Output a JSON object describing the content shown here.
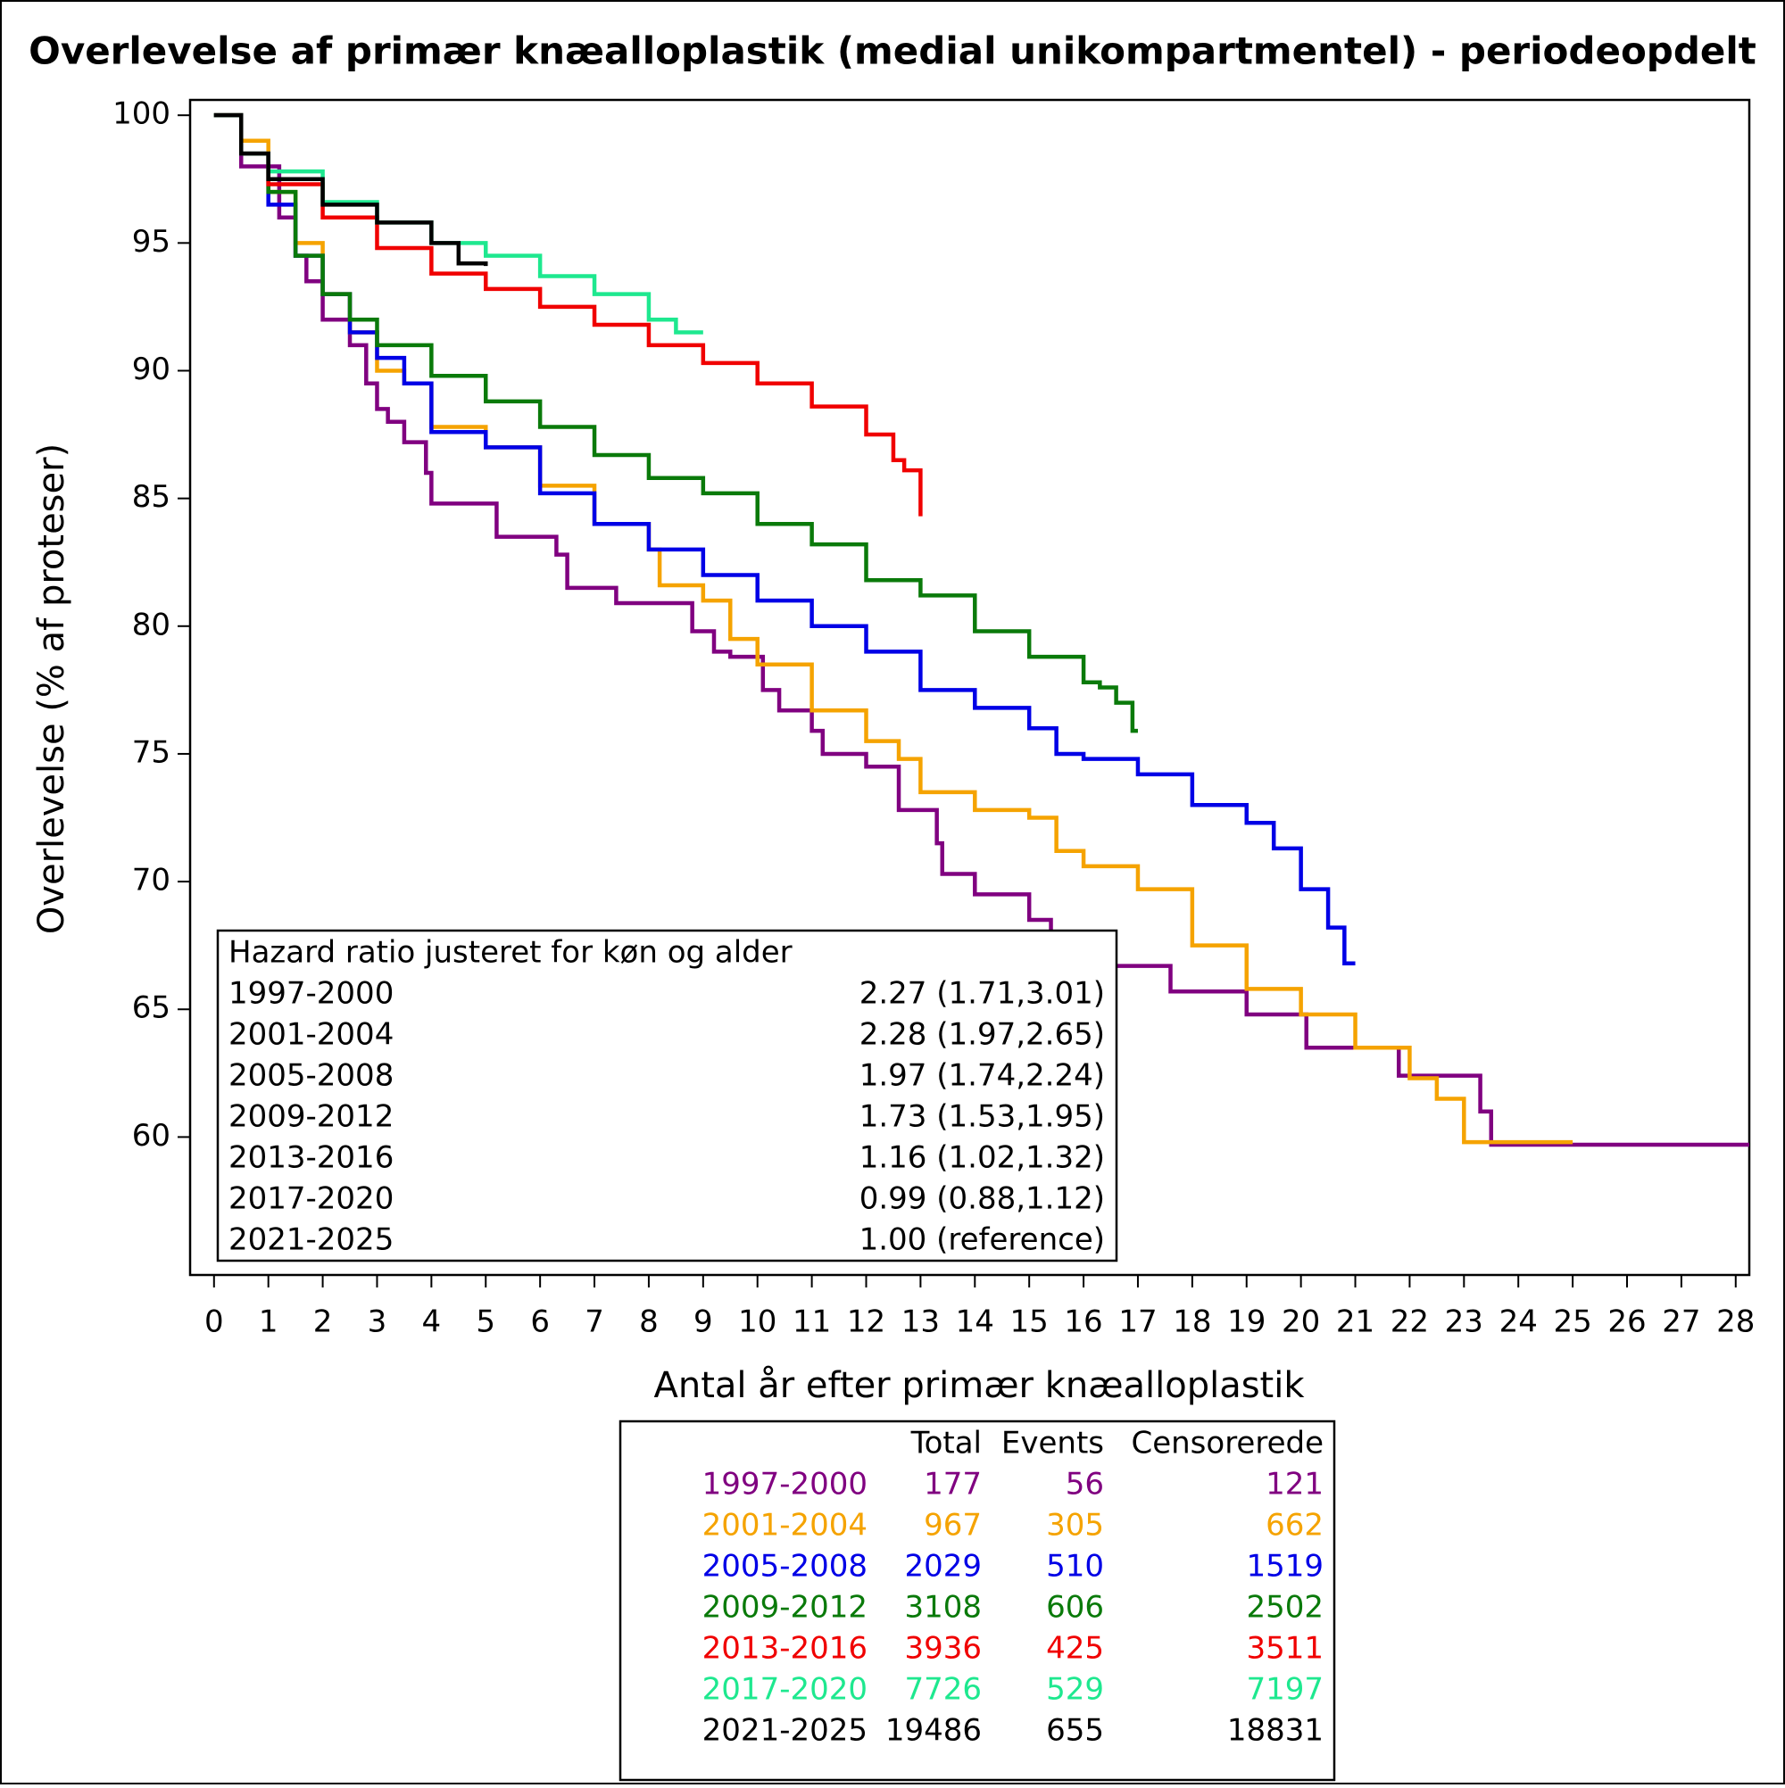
{
  "chart_data": {
    "type": "step",
    "title": "Overlevelse af primær knæalloplastik (medial unikompartmentel) - periodeopdelt",
    "xlabel": "Antal år efter primær knæalloplastik",
    "ylabel": "Overlevelse (% af proteser)",
    "xlim": [
      -0.44,
      28.25
    ],
    "ylim": [
      54.6,
      100.6
    ],
    "xticks": [
      0,
      1,
      2,
      3,
      4,
      5,
      6,
      7,
      8,
      9,
      10,
      11,
      12,
      13,
      14,
      15,
      16,
      17,
      18,
      19,
      20,
      21,
      22,
      23,
      24,
      25,
      26,
      27,
      28
    ],
    "yticks": [
      60,
      65,
      70,
      75,
      80,
      85,
      90,
      95,
      100
    ],
    "series": [
      {
        "name": "1997-2000",
        "color": "#800080",
        "total": 177,
        "events": 56,
        "censored": 121,
        "x": [
          0,
          0.4,
          0.5,
          1.2,
          1.5,
          1.7,
          2,
          2.5,
          2.8,
          3,
          3.2,
          3.5,
          3.9,
          4,
          5.2,
          6.3,
          6.5,
          7.4,
          8.8,
          9.2,
          9.5,
          10.1,
          10.4,
          11,
          11.2,
          12,
          12.6,
          13.3,
          13.4,
          14,
          15,
          15.4,
          15.5,
          17.6,
          19,
          20.1,
          21.8,
          23.3,
          23.5,
          28.25
        ],
        "values": [
          100,
          100,
          98,
          96,
          94.5,
          93.5,
          92,
          91,
          89.5,
          88.5,
          88,
          87.2,
          86,
          84.8,
          83.5,
          82.8,
          81.5,
          80.9,
          79.8,
          79,
          78.8,
          77.5,
          76.7,
          75.9,
          75,
          74.5,
          72.8,
          71.5,
          70.3,
          69.5,
          68.5,
          67.5,
          66.7,
          65.7,
          64.8,
          63.5,
          62.4,
          61,
          59.7,
          59.7
        ]
      },
      {
        "name": "2001-2004",
        "color": "#f5a300",
        "total": 967,
        "events": 305,
        "censored": 662,
        "x": [
          0,
          0.5,
          1,
          1.5,
          2,
          2.5,
          3,
          3.5,
          4,
          5,
          6,
          7,
          8,
          8.2,
          9,
          9.5,
          10,
          11,
          12,
          12.6,
          13,
          14,
          15,
          15.5,
          16,
          17,
          18,
          19,
          20,
          21,
          22,
          22.5,
          23,
          25
        ],
        "values": [
          100,
          99,
          97,
          95,
          93,
          91.5,
          90,
          89.5,
          87.8,
          87,
          85.5,
          84,
          83,
          81.6,
          81,
          79.5,
          78.5,
          76.7,
          75.5,
          74.8,
          73.5,
          72.8,
          72.5,
          71.2,
          70.6,
          69.7,
          67.5,
          65.8,
          64.8,
          63.5,
          62.3,
          61.5,
          59.8,
          59.8
        ]
      },
      {
        "name": "2005-2008",
        "color": "#0000e6",
        "total": 2029,
        "events": 510,
        "censored": 1519,
        "x": [
          0,
          0.5,
          1,
          1.5,
          2,
          2.5,
          3,
          3.5,
          4,
          5,
          6,
          7,
          8,
          9,
          10,
          11,
          12,
          13,
          14,
          15,
          15.5,
          16,
          17,
          18,
          19,
          19.5,
          20,
          20.5,
          20.8,
          21
        ],
        "values": [
          100,
          98.5,
          96.5,
          94.5,
          93,
          91.5,
          90.5,
          89.5,
          87.6,
          87,
          85.2,
          84,
          83,
          82,
          81,
          80,
          79,
          77.5,
          76.8,
          76,
          75,
          74.8,
          74.2,
          73,
          72.3,
          71.3,
          69.7,
          68.2,
          66.8,
          66.8
        ]
      },
      {
        "name": "2009-2012",
        "color": "#0a7a0a",
        "total": 3108,
        "events": 606,
        "censored": 2502,
        "x": [
          0,
          0.5,
          1,
          1.5,
          2,
          2.5,
          3,
          4,
          5,
          6,
          7,
          8,
          9,
          10,
          11,
          12,
          13,
          14,
          15,
          16,
          16.3,
          16.6,
          16.9,
          17
        ],
        "values": [
          100,
          98.5,
          97,
          94.5,
          93,
          92,
          91,
          89.8,
          88.8,
          87.8,
          86.7,
          85.8,
          85.2,
          84,
          83.2,
          81.8,
          81.2,
          79.8,
          78.8,
          77.8,
          77.6,
          77,
          75.9,
          75.9
        ]
      },
      {
        "name": "2013-2016",
        "color": "#f00000",
        "total": 3936,
        "events": 425,
        "censored": 3511,
        "x": [
          0,
          0.5,
          1,
          2,
          3,
          4,
          5,
          6,
          7,
          8,
          9,
          10,
          11,
          12,
          12.5,
          12.7,
          13
        ],
        "values": [
          100,
          98.5,
          97.3,
          96,
          94.8,
          93.8,
          93.2,
          92.5,
          91.8,
          91,
          90.3,
          89.5,
          88.6,
          87.5,
          86.5,
          86.1,
          84.3
        ]
      },
      {
        "name": "2017-2020",
        "color": "#1ee88f",
        "total": 7726,
        "events": 529,
        "censored": 7197,
        "x": [
          0,
          0.5,
          1,
          2,
          3,
          4,
          5,
          6,
          7,
          8,
          8.5,
          9
        ],
        "values": [
          100,
          98.5,
          97.8,
          96.6,
          95.8,
          95,
          94.5,
          93.7,
          93,
          92,
          91.5,
          91.5
        ]
      },
      {
        "name": "2021-2025",
        "color": "#000000",
        "total": 19486,
        "events": 655,
        "censored": 18831,
        "x": [
          0,
          0.5,
          1,
          2,
          3,
          4,
          4.5,
          5
        ],
        "values": [
          100,
          98.5,
          97.5,
          96.5,
          95.8,
          95,
          94.2,
          94.1
        ]
      }
    ],
    "hazard_box": {
      "title": "Hazard ratio justeret for køn og alder",
      "rows": [
        [
          "1997-2000",
          "2.27 (1.71,3.01)"
        ],
        [
          "2001-2004",
          "2.28 (1.97,2.65)"
        ],
        [
          "2005-2008",
          "1.97 (1.74,2.24)"
        ],
        [
          "2009-2012",
          "1.73 (1.53,1.95)"
        ],
        [
          "2013-2016",
          "1.16 (1.02,1.32)"
        ],
        [
          "2017-2020",
          "0.99 (0.88,1.12)"
        ],
        [
          "2021-2025",
          "1.00 (reference)"
        ]
      ]
    },
    "risk_table": {
      "header": [
        "Total",
        "Events",
        "Censorerede"
      ]
    }
  }
}
